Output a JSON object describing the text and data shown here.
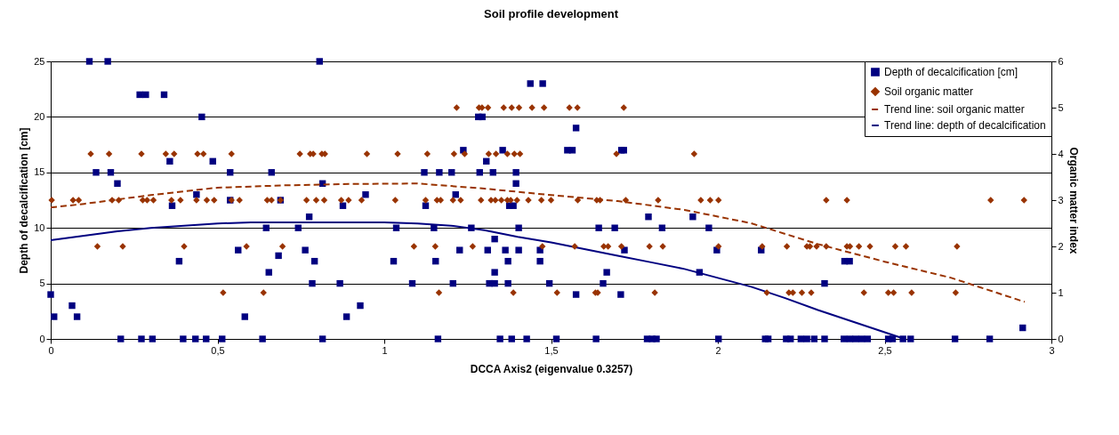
{
  "chart_data": {
    "type": "scatter",
    "title": "Soil profile development",
    "xlabel": "DCCA Axis2 (eigenvalue 0.3257)",
    "ylabel": "Depth of decalcification [cm]",
    "y2label": "Organic matter index",
    "xlim": [
      0,
      3
    ],
    "xticks": [
      0,
      {
        "value": 0.5,
        "label": "0,5"
      },
      1,
      {
        "value": 1.5,
        "label": "1,5"
      },
      2,
      {
        "value": 2.5,
        "label": "2,5"
      },
      3
    ],
    "ylim": [
      0,
      25
    ],
    "yticks": [
      0,
      5,
      10,
      15,
      20,
      25
    ],
    "y2lim": [
      0,
      6
    ],
    "y2ticks": [
      0,
      1,
      2,
      3,
      4,
      5,
      6
    ],
    "grid": "y",
    "legend": "top right",
    "series": [
      {
        "name": "Depth of decalcification [cm]",
        "marker": "square",
        "color": "#000080",
        "x": [
          0,
          0.01,
          0.064,
          0.079,
          0.116,
          0.171,
          0.136,
          0.18,
          0.2,
          0.21,
          0.267,
          0.285,
          0.272,
          0.305,
          0.34,
          0.357,
          0.364,
          0.385,
          0.397,
          0.434,
          0.437,
          0.453,
          0.466,
          0.486,
          0.514,
          0.538,
          0.538,
          0.562,
          0.582,
          0.635,
          0.646,
          0.654,
          0.662,
          0.683,
          0.689,
          0.742,
          0.763,
          0.775,
          0.784,
          0.791,
          0.806,
          0.815,
          0.815,
          0.867,
          0.876,
          0.887,
          0.928,
          0.944,
          1.028,
          1.036,
          1.084,
          1.12,
          1.124,
          1.149,
          1.154,
          1.161,
          1.165,
          1.202,
          1.206,
          1.214,
          1.226,
          1.237,
          1.261,
          1.282,
          1.294,
          1.286,
          1.306,
          1.31,
          1.315,
          1.331,
          1.326,
          1.331,
          1.331,
          1.347,
          1.355,
          1.363,
          1.371,
          1.371,
          1.375,
          1.387,
          1.382,
          1.395,
          1.395,
          1.403,
          1.403,
          1.427,
          1.438,
          1.475,
          1.467,
          1.467,
          1.495,
          1.516,
          1.549,
          1.564,
          1.575,
          1.575,
          1.635,
          1.643,
          1.656,
          1.667,
          1.691,
          1.709,
          1.711,
          1.718,
          1.72,
          1.792,
          1.788,
          1.803,
          1.816,
          1.833,
          1.925,
          1.945,
          1.973,
          1.997,
          2.002,
          2.13,
          2.142,
          2.151,
          2.205,
          2.218,
          2.249,
          2.267,
          2.289,
          2.32,
          2.32,
          2.378,
          2.38,
          2.395,
          2.396,
          2.413,
          2.431,
          2.449,
          2.511,
          2.524,
          2.555,
          2.578,
          2.711,
          2.815,
          2.914
        ],
        "values": [
          4,
          2,
          3,
          2,
          25,
          25,
          15,
          15,
          14,
          0,
          22,
          22,
          0,
          0,
          22,
          16,
          12,
          7,
          0,
          0,
          13,
          20,
          0,
          16,
          0,
          15,
          12.5,
          8,
          2,
          0,
          10,
          6,
          15,
          7.5,
          12.5,
          10,
          8,
          11,
          5,
          7,
          25,
          14,
          0,
          5,
          12,
          2,
          3,
          13,
          7,
          10,
          5,
          15,
          12,
          10,
          7,
          0,
          15,
          15,
          5,
          13,
          8,
          17,
          10,
          20,
          20,
          15,
          16,
          8,
          5,
          5,
          15,
          6,
          9,
          0,
          17,
          8,
          7,
          5,
          12,
          12,
          0,
          15,
          14,
          10,
          8,
          0,
          23,
          23,
          8,
          7,
          5,
          0,
          17,
          17,
          19,
          4,
          0,
          10,
          5,
          6,
          10,
          4,
          17,
          17,
          8,
          11,
          0,
          0,
          0,
          10,
          11,
          6,
          10,
          8,
          0,
          8,
          0,
          0,
          0,
          0,
          0,
          0,
          0,
          5,
          0,
          0,
          7,
          7,
          0,
          0,
          0,
          0,
          0,
          0,
          0,
          0,
          0,
          0,
          1
        ]
      },
      {
        "name": "Soil organic matter",
        "marker": "diamond",
        "color": "#993300",
        "axis": "y2",
        "x": [
          0.12,
          0.175,
          0.272,
          0.345,
          0.37,
          0.44,
          0.458,
          0.542,
          0.747,
          0.778,
          0.787,
          0.813,
          0.822,
          0.948,
          1.04,
          0.003,
          0.067,
          0.084,
          0.184,
          0.204,
          0.276,
          0.289,
          0.308,
          0.362,
          0.389,
          0.437,
          0.468,
          0.49,
          0.542,
          0.566,
          0.649,
          0.662,
          0.689,
          0.767,
          0.796,
          0.82,
          0.871,
          0.893,
          0.932,
          1.033,
          0.14,
          0.216,
          0.4,
          0.587,
          0.695,
          1.089,
          0.517,
          0.638,
          1.217,
          1.284,
          1.293,
          1.311,
          1.358,
          1.382,
          1.404,
          1.443,
          1.479,
          1.555,
          1.579,
          1.718,
          1.129,
          1.209,
          1.241,
          1.313,
          1.335,
          1.369,
          1.39,
          1.407,
          1.696,
          1.929,
          1.124,
          1.158,
          1.169,
          1.206,
          1.229,
          1.29,
          1.32,
          1.333,
          1.351,
          1.369,
          1.379,
          1.398,
          1.432,
          1.471,
          1.5,
          1.58,
          1.637,
          1.647,
          1.724,
          1.821,
          1.949,
          1.977,
          2.002,
          2.325,
          2.387,
          2.818,
          2.918,
          1.153,
          1.265,
          1.474,
          1.571,
          1.658,
          1.671,
          1.711,
          1.795,
          1.835,
          2.002,
          2.133,
          2.207,
          2.267,
          2.276,
          2.296,
          2.325,
          2.387,
          2.396,
          2.423,
          2.456,
          2.532,
          2.564,
          2.717,
          1.164,
          1.387,
          1.518,
          1.633,
          1.64,
          1.811,
          2.147,
          2.213,
          2.225,
          2.252,
          2.28,
          2.438,
          2.511,
          2.527,
          2.581,
          2.713
        ],
        "values": [
          4,
          4,
          4,
          4,
          4,
          4,
          4,
          4,
          4,
          4,
          4,
          4,
          4,
          4,
          4,
          3,
          3,
          3,
          3,
          3,
          3,
          3,
          3,
          3,
          3,
          3,
          3,
          3,
          3,
          3,
          3,
          3,
          3,
          3,
          3,
          3,
          3,
          3,
          3,
          3,
          2,
          2,
          2,
          2,
          2,
          2,
          1,
          1,
          5,
          5,
          5,
          5,
          5,
          5,
          5,
          5,
          5,
          5,
          5,
          5,
          4,
          4,
          4,
          4,
          4,
          4,
          4,
          4,
          4,
          4,
          3,
          3,
          3,
          3,
          3,
          3,
          3,
          3,
          3,
          3,
          3,
          3,
          3,
          3,
          3,
          3,
          3,
          3,
          3,
          3,
          3,
          3,
          3,
          3,
          3,
          3,
          3,
          2,
          2,
          2,
          2,
          2,
          2,
          2,
          2,
          2,
          2,
          2,
          2,
          2,
          2,
          2,
          2,
          2,
          2,
          2,
          2,
          2,
          2,
          2,
          1,
          1,
          1,
          1,
          1,
          1,
          1,
          1,
          1,
          1,
          1,
          1,
          1,
          1,
          1,
          1
        ]
      },
      {
        "name": "Trend line: soil organic matter",
        "type": "line",
        "line_style": "dashed",
        "color": "#993300",
        "axis": "y2",
        "x": [
          0,
          0.1,
          0.3,
          0.5,
          0.7,
          0.9,
          1.1,
          1.3,
          1.5,
          1.7,
          1.9,
          2.1,
          2.3,
          2.5,
          2.7,
          2.92
        ],
        "values": [
          2.84,
          2.92,
          3.11,
          3.27,
          3.32,
          3.35,
          3.36,
          3.25,
          3.11,
          2.98,
          2.79,
          2.5,
          2.05,
          1.67,
          1.32,
          0.8
        ]
      },
      {
        "name": "Trend line: depth of decalcification",
        "type": "line",
        "line_style": "solid",
        "color": "#000080",
        "x": [
          0,
          0.1,
          0.2,
          0.3,
          0.4,
          0.5,
          0.6,
          0.8,
          1.0,
          1.1,
          1.2,
          1.3,
          1.4,
          1.5,
          1.6,
          1.7,
          1.8,
          1.9,
          2.0,
          2.1,
          2.2,
          2.3,
          2.4,
          2.5,
          2.56
        ],
        "values": [
          8.9,
          9.3,
          9.7,
          10,
          10.2,
          10.4,
          10.5,
          10.5,
          10.5,
          10.4,
          10.2,
          9.8,
          9.2,
          8.7,
          8.1,
          7.5,
          6.9,
          6.3,
          5.5,
          4.7,
          3.7,
          2.6,
          1.6,
          0.6,
          0
        ]
      }
    ]
  }
}
